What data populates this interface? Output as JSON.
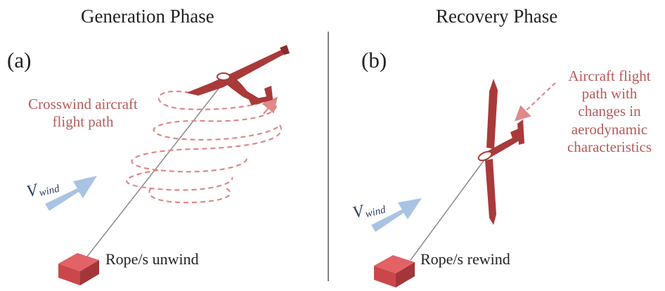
{
  "panels": [
    {
      "title": "Generation Phase",
      "label": "(a)",
      "annotation_lines": [
        "Crosswind aircraft",
        "flight path"
      ],
      "rope_label": "Rope/s unwind",
      "wind_symbol": "V",
      "wind_subscript": "wind"
    },
    {
      "title": "Recovery Phase",
      "label": "(b)",
      "annotation_lines": [
        "Aircraft flight",
        "path with",
        "changes in",
        "aerodynamic",
        "characteristics"
      ],
      "rope_label": "Rope/s rewind",
      "wind_symbol": "V",
      "wind_subscript": "wind"
    }
  ],
  "colors": {
    "aircraft": "#a93a3a",
    "path_dashes": "#e0888a",
    "wind_arrow": "#a9c3e3",
    "ground_box": "#c9474a",
    "divider": "#555555",
    "rope": "#8a8a8a"
  }
}
